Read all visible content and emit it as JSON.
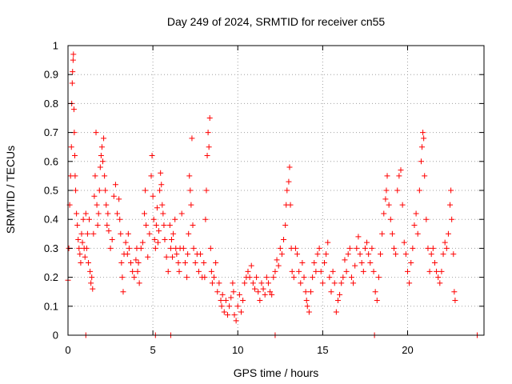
{
  "chart_data": {
    "type": "scatter",
    "title": "Day 249 of 2024, SRMTID for receiver cn55",
    "xlabel": "GPS time / hours",
    "ylabel": "SRMTID / TECUs",
    "xlim": [
      0,
      24.5
    ],
    "ylim": [
      0,
      1
    ],
    "xticks": [
      0,
      5,
      10,
      15,
      20
    ],
    "xtick_labels": [
      "0",
      "5",
      "10",
      "15",
      "20"
    ],
    "yticks": [
      0,
      0.1,
      0.2,
      0.3,
      0.4,
      0.5,
      0.6,
      0.7,
      0.8,
      0.9,
      1
    ],
    "ytick_labels": [
      "0",
      "0.1",
      "0.2",
      "0.3",
      "0.4",
      "0.5",
      "0.6",
      "0.7",
      "0.8",
      "0.9",
      "1"
    ],
    "grid": true,
    "marker": "+",
    "color": "#ff0000",
    "series": [
      {
        "name": "cn55",
        "points": [
          [
            0.0,
            0.19
          ],
          [
            0.05,
            0.3
          ],
          [
            0.1,
            0.45
          ],
          [
            0.15,
            0.55
          ],
          [
            0.2,
            0.65
          ],
          [
            0.22,
            0.8
          ],
          [
            0.25,
            0.87
          ],
          [
            0.27,
            0.91
          ],
          [
            0.3,
            0.95
          ],
          [
            0.32,
            0.97
          ],
          [
            0.35,
            0.78
          ],
          [
            0.37,
            0.7
          ],
          [
            0.4,
            0.62
          ],
          [
            0.42,
            0.55
          ],
          [
            0.45,
            0.5
          ],
          [
            0.5,
            0.42
          ],
          [
            0.55,
            0.38
          ],
          [
            0.6,
            0.33
          ],
          [
            0.65,
            0.3
          ],
          [
            0.7,
            0.28
          ],
          [
            0.75,
            0.25
          ],
          [
            0.8,
            0.35
          ],
          [
            0.85,
            0.32
          ],
          [
            0.9,
            0.4
          ],
          [
            0.95,
            0.3
          ],
          [
            1.0,
            0.27
          ],
          [
            1.05,
            0.42
          ],
          [
            1.1,
            0.3
          ],
          [
            1.15,
            0.35
          ],
          [
            1.2,
            0.25
          ],
          [
            1.25,
            0.4
          ],
          [
            1.3,
            0.22
          ],
          [
            1.35,
            0.18
          ],
          [
            1.4,
            0.2
          ],
          [
            1.45,
            0.16
          ],
          [
            1.5,
            0.35
          ],
          [
            1.55,
            0.48
          ],
          [
            1.6,
            0.55
          ],
          [
            1.65,
            0.7
          ],
          [
            1.7,
            0.45
          ],
          [
            1.75,
            0.38
          ],
          [
            1.8,
            0.42
          ],
          [
            1.85,
            0.5
          ],
          [
            1.9,
            0.58
          ],
          [
            1.95,
            0.62
          ],
          [
            2.0,
            0.65
          ],
          [
            2.05,
            0.6
          ],
          [
            2.1,
            0.68
          ],
          [
            2.15,
            0.55
          ],
          [
            2.2,
            0.5
          ],
          [
            2.25,
            0.45
          ],
          [
            2.3,
            0.38
          ],
          [
            2.35,
            0.42
          ],
          [
            2.4,
            0.36
          ],
          [
            2.5,
            0.3
          ],
          [
            2.6,
            0.33
          ],
          [
            2.7,
            0.48
          ],
          [
            2.8,
            0.52
          ],
          [
            2.9,
            0.42
          ],
          [
            3.0,
            0.47
          ],
          [
            3.05,
            0.4
          ],
          [
            3.1,
            0.35
          ],
          [
            3.15,
            0.25
          ],
          [
            3.2,
            0.2
          ],
          [
            3.25,
            0.15
          ],
          [
            3.3,
            0.28
          ],
          [
            3.4,
            0.32
          ],
          [
            3.5,
            0.28
          ],
          [
            3.55,
            0.35
          ],
          [
            3.6,
            0.3
          ],
          [
            3.7,
            0.25
          ],
          [
            3.8,
            0.22
          ],
          [
            3.9,
            0.2
          ],
          [
            4.0,
            0.26
          ],
          [
            4.05,
            0.3
          ],
          [
            4.1,
            0.22
          ],
          [
            4.15,
            0.25
          ],
          [
            4.2,
            0.18
          ],
          [
            4.3,
            0.3
          ],
          [
            4.4,
            0.32
          ],
          [
            4.5,
            0.42
          ],
          [
            4.55,
            0.5
          ],
          [
            4.6,
            0.38
          ],
          [
            4.7,
            0.27
          ],
          [
            4.8,
            0.35
          ],
          [
            4.9,
            0.55
          ],
          [
            4.95,
            0.62
          ],
          [
            5.0,
            0.48
          ],
          [
            5.05,
            0.4
          ],
          [
            5.1,
            0.33
          ],
          [
            5.15,
            0.3
          ],
          [
            5.2,
            0.38
          ],
          [
            5.25,
            0.44
          ],
          [
            5.3,
            0.32
          ],
          [
            5.35,
            0.36
          ],
          [
            5.4,
            0.5
          ],
          [
            5.45,
            0.56
          ],
          [
            5.5,
            0.52
          ],
          [
            5.55,
            0.45
          ],
          [
            5.6,
            0.42
          ],
          [
            5.65,
            0.38
          ],
          [
            5.7,
            0.33
          ],
          [
            5.8,
            0.27
          ],
          [
            5.9,
            0.22
          ],
          [
            6.0,
            0.38
          ],
          [
            6.05,
            0.3
          ],
          [
            6.1,
            0.33
          ],
          [
            6.15,
            0.27
          ],
          [
            6.2,
            0.35
          ],
          [
            6.3,
            0.4
          ],
          [
            6.35,
            0.3
          ],
          [
            6.4,
            0.28
          ],
          [
            6.5,
            0.25
          ],
          [
            6.55,
            0.22
          ],
          [
            6.6,
            0.3
          ],
          [
            6.7,
            0.42
          ],
          [
            6.8,
            0.3
          ],
          [
            6.9,
            0.25
          ],
          [
            7.0,
            0.2
          ],
          [
            7.05,
            0.28
          ],
          [
            7.1,
            0.35
          ],
          [
            7.15,
            0.55
          ],
          [
            7.2,
            0.5
          ],
          [
            7.25,
            0.45
          ],
          [
            7.3,
            0.68
          ],
          [
            7.35,
            0.38
          ],
          [
            7.4,
            0.3
          ],
          [
            7.5,
            0.25
          ],
          [
            7.6,
            0.28
          ],
          [
            7.7,
            0.22
          ],
          [
            7.8,
            0.28
          ],
          [
            7.9,
            0.2
          ],
          [
            8.0,
            0.25
          ],
          [
            8.05,
            0.2
          ],
          [
            8.1,
            0.4
          ],
          [
            8.15,
            0.5
          ],
          [
            8.2,
            0.62
          ],
          [
            8.25,
            0.7
          ],
          [
            8.3,
            0.65
          ],
          [
            8.35,
            0.75
          ],
          [
            8.4,
            0.3
          ],
          [
            8.45,
            0.22
          ],
          [
            8.5,
            0.18
          ],
          [
            8.6,
            0.2
          ],
          [
            8.7,
            0.25
          ],
          [
            8.8,
            0.15
          ],
          [
            8.9,
            0.18
          ],
          [
            9.0,
            0.12
          ],
          [
            9.05,
            0.1
          ],
          [
            9.1,
            0.14
          ],
          [
            9.2,
            0.08
          ],
          [
            9.3,
            0.12
          ],
          [
            9.4,
            0.07
          ],
          [
            9.5,
            0.1
          ],
          [
            9.6,
            0.13
          ],
          [
            9.7,
            0.18
          ],
          [
            9.75,
            0.15
          ],
          [
            9.8,
            0.07
          ],
          [
            9.9,
            0.05
          ],
          [
            10.0,
            0.1
          ],
          [
            10.1,
            0.14
          ],
          [
            10.2,
            0.08
          ],
          [
            10.3,
            0.12
          ],
          [
            10.4,
            0.18
          ],
          [
            10.5,
            0.2
          ],
          [
            10.6,
            0.22
          ],
          [
            10.7,
            0.2
          ],
          [
            10.8,
            0.24
          ],
          [
            10.9,
            0.18
          ],
          [
            11.0,
            0.16
          ],
          [
            11.1,
            0.2
          ],
          [
            11.2,
            0.15
          ],
          [
            11.3,
            0.12
          ],
          [
            11.4,
            0.18
          ],
          [
            11.5,
            0.16
          ],
          [
            11.6,
            0.14
          ],
          [
            11.7,
            0.2
          ],
          [
            11.8,
            0.18
          ],
          [
            11.9,
            0.15
          ],
          [
            12.0,
            0.14
          ],
          [
            12.1,
            0.2
          ],
          [
            12.2,
            0.22
          ],
          [
            12.3,
            0.26
          ],
          [
            12.4,
            0.24
          ],
          [
            12.5,
            0.3
          ],
          [
            12.6,
            0.28
          ],
          [
            12.7,
            0.33
          ],
          [
            12.8,
            0.38
          ],
          [
            12.85,
            0.45
          ],
          [
            12.9,
            0.5
          ],
          [
            13.0,
            0.53
          ],
          [
            13.05,
            0.58
          ],
          [
            13.1,
            0.45
          ],
          [
            13.15,
            0.3
          ],
          [
            13.2,
            0.22
          ],
          [
            13.3,
            0.2
          ],
          [
            13.4,
            0.3
          ],
          [
            13.5,
            0.28
          ],
          [
            13.6,
            0.22
          ],
          [
            13.7,
            0.18
          ],
          [
            13.8,
            0.25
          ],
          [
            13.9,
            0.2
          ],
          [
            14.0,
            0.15
          ],
          [
            14.05,
            0.12
          ],
          [
            14.1,
            0.1
          ],
          [
            14.2,
            0.08
          ],
          [
            14.3,
            0.15
          ],
          [
            14.4,
            0.2
          ],
          [
            14.5,
            0.25
          ],
          [
            14.6,
            0.22
          ],
          [
            14.7,
            0.28
          ],
          [
            14.8,
            0.3
          ],
          [
            14.9,
            0.22
          ],
          [
            15.0,
            0.18
          ],
          [
            15.1,
            0.25
          ],
          [
            15.2,
            0.28
          ],
          [
            15.3,
            0.32
          ],
          [
            15.4,
            0.2
          ],
          [
            15.5,
            0.15
          ],
          [
            15.6,
            0.22
          ],
          [
            15.7,
            0.18
          ],
          [
            15.8,
            0.08
          ],
          [
            15.9,
            0.12
          ],
          [
            16.0,
            0.14
          ],
          [
            16.1,
            0.18
          ],
          [
            16.2,
            0.2
          ],
          [
            16.3,
            0.26
          ],
          [
            16.4,
            0.22
          ],
          [
            16.5,
            0.28
          ],
          [
            16.6,
            0.3
          ],
          [
            16.7,
            0.2
          ],
          [
            16.8,
            0.18
          ],
          [
            16.9,
            0.24
          ],
          [
            17.0,
            0.3
          ],
          [
            17.1,
            0.34
          ],
          [
            17.2,
            0.28
          ],
          [
            17.3,
            0.25
          ],
          [
            17.4,
            0.22
          ],
          [
            17.5,
            0.3
          ],
          [
            17.6,
            0.32
          ],
          [
            17.7,
            0.28
          ],
          [
            17.8,
            0.25
          ],
          [
            17.9,
            0.3
          ],
          [
            18.0,
            0.22
          ],
          [
            18.1,
            0.15
          ],
          [
            18.2,
            0.12
          ],
          [
            18.3,
            0.2
          ],
          [
            18.4,
            0.28
          ],
          [
            18.5,
            0.35
          ],
          [
            18.6,
            0.42
          ],
          [
            18.7,
            0.47
          ],
          [
            18.75,
            0.5
          ],
          [
            18.8,
            0.55
          ],
          [
            18.9,
            0.45
          ],
          [
            19.0,
            0.4
          ],
          [
            19.1,
            0.35
          ],
          [
            19.2,
            0.3
          ],
          [
            19.3,
            0.28
          ],
          [
            19.4,
            0.5
          ],
          [
            19.5,
            0.55
          ],
          [
            19.6,
            0.57
          ],
          [
            19.7,
            0.45
          ],
          [
            19.8,
            0.32
          ],
          [
            19.9,
            0.28
          ],
          [
            20.0,
            0.22
          ],
          [
            20.1,
            0.18
          ],
          [
            20.2,
            0.25
          ],
          [
            20.3,
            0.3
          ],
          [
            20.4,
            0.38
          ],
          [
            20.5,
            0.42
          ],
          [
            20.6,
            0.35
          ],
          [
            20.7,
            0.5
          ],
          [
            20.8,
            0.6
          ],
          [
            20.85,
            0.65
          ],
          [
            20.9,
            0.7
          ],
          [
            20.95,
            0.68
          ],
          [
            21.0,
            0.55
          ],
          [
            21.1,
            0.4
          ],
          [
            21.2,
            0.3
          ],
          [
            21.3,
            0.22
          ],
          [
            21.4,
            0.28
          ],
          [
            21.5,
            0.3
          ],
          [
            21.6,
            0.25
          ],
          [
            21.7,
            0.22
          ],
          [
            21.8,
            0.2
          ],
          [
            21.9,
            0.18
          ],
          [
            22.0,
            0.22
          ],
          [
            22.1,
            0.28
          ],
          [
            22.2,
            0.32
          ],
          [
            22.3,
            0.3
          ],
          [
            22.4,
            0.35
          ],
          [
            22.5,
            0.45
          ],
          [
            22.55,
            0.5
          ],
          [
            22.6,
            0.4
          ],
          [
            22.7,
            0.28
          ],
          [
            22.75,
            0.15
          ],
          [
            22.8,
            0.12
          ],
          [
            1.05,
            0.0
          ],
          [
            5.15,
            0.0
          ],
          [
            6.05,
            0.0
          ],
          [
            12.2,
            0.0
          ],
          [
            18.05,
            0.0
          ],
          [
            24.1,
            0.0
          ]
        ]
      }
    ]
  }
}
